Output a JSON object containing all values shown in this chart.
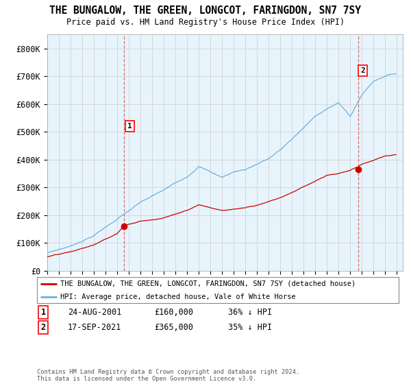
{
  "title": "THE BUNGALOW, THE GREEN, LONGCOT, FARINGDON, SN7 7SY",
  "subtitle": "Price paid vs. HM Land Registry's House Price Index (HPI)",
  "background_color": "#ffffff",
  "plot_bg_color": "#e8f4fc",
  "grid_color": "#cccccc",
  "hpi_color": "#6ab0de",
  "property_color": "#cc0000",
  "ylim": [
    0,
    850000
  ],
  "yticks": [
    0,
    100000,
    200000,
    300000,
    400000,
    500000,
    600000,
    700000,
    800000
  ],
  "ytick_labels": [
    "£0",
    "£100K",
    "£200K",
    "£300K",
    "£400K",
    "£500K",
    "£600K",
    "£700K",
    "£800K"
  ],
  "transaction1": {
    "date": "24-AUG-2001",
    "price": 160000,
    "label": "1",
    "hpi_diff": "36% ↓ HPI"
  },
  "transaction2": {
    "date": "17-SEP-2021",
    "price": 365000,
    "label": "2",
    "hpi_diff": "35% ↓ HPI"
  },
  "legend_property": "THE BUNGALOW, THE GREEN, LONGCOT, FARINGDON, SN7 7SY (detached house)",
  "legend_hpi": "HPI: Average price, detached house, Vale of White Horse",
  "footnote": "Contains HM Land Registry data © Crown copyright and database right 2024.\nThis data is licensed under the Open Government Licence v3.0.",
  "xstart_year": 1995,
  "xend_year": 2025
}
